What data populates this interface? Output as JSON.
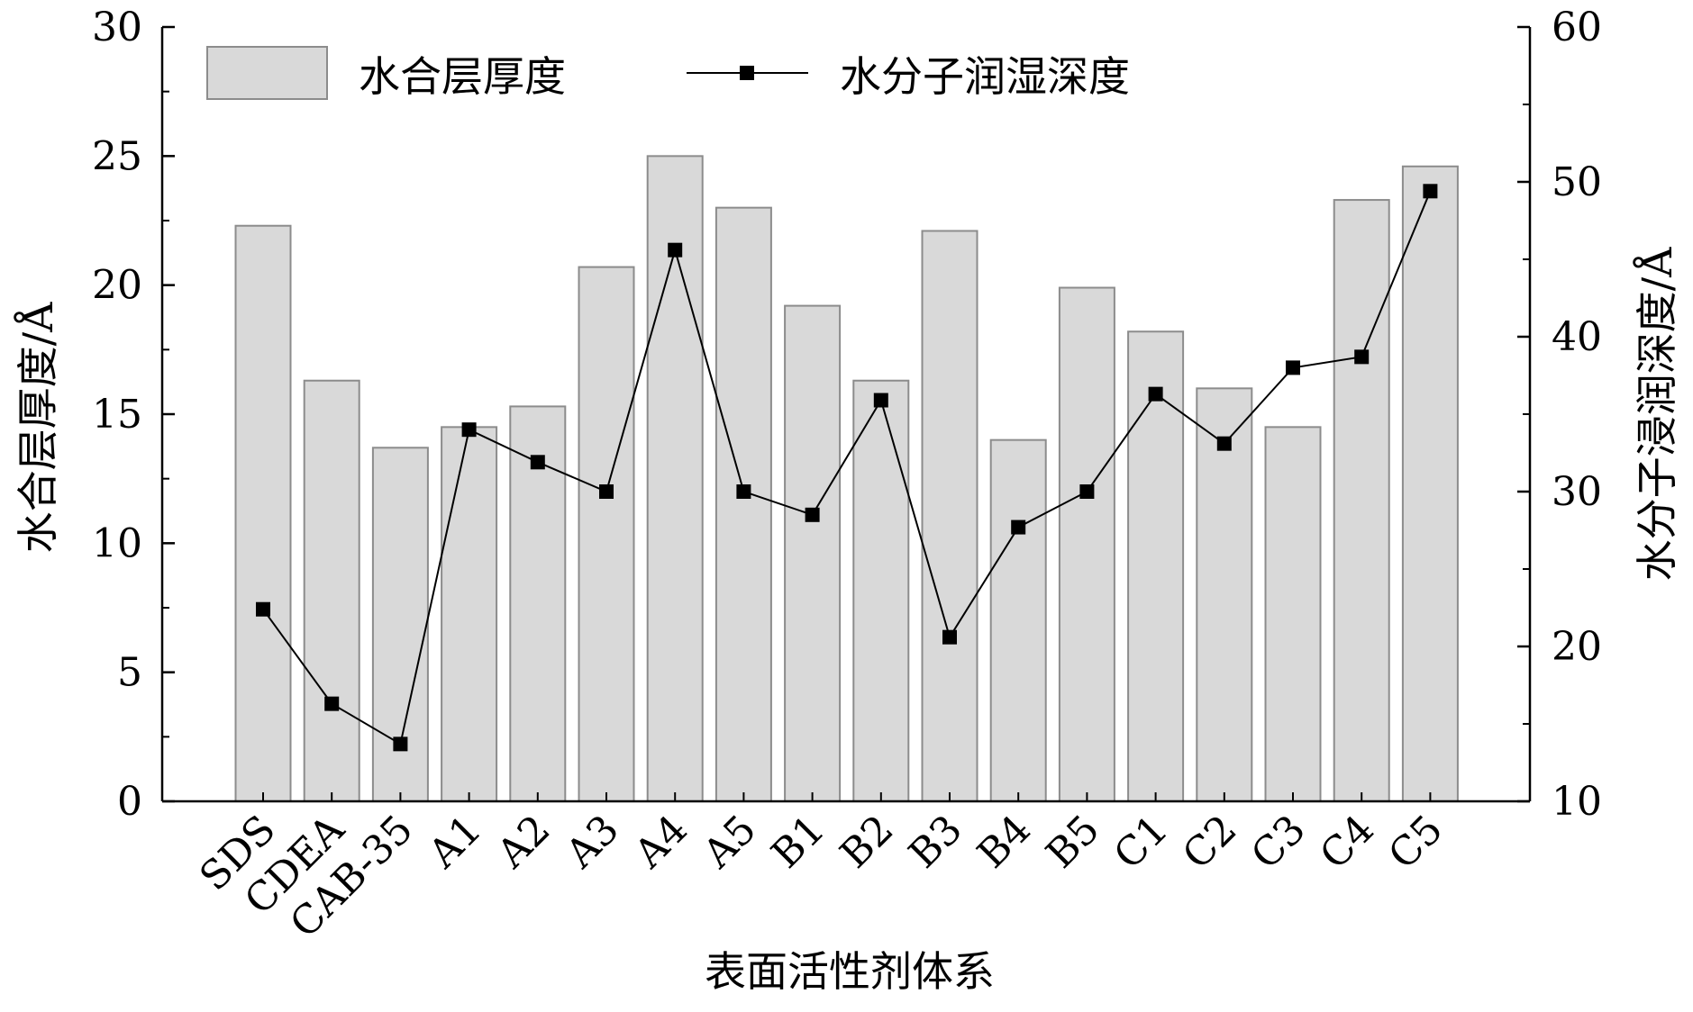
{
  "chart_data": {
    "type": "bar",
    "categories": [
      "SDS",
      "CDEA",
      "CAB-35",
      "A1",
      "A2",
      "A3",
      "A4",
      "A5",
      "B1",
      "B2",
      "B3",
      "B4",
      "B5",
      "C1",
      "C2",
      "C3",
      "C4",
      "C5"
    ],
    "series": [
      {
        "name": "水合层厚度",
        "type": "bar",
        "axis": "left",
        "color": "#d9d9d9",
        "values": [
          22.3,
          16.3,
          13.7,
          14.5,
          15.3,
          20.7,
          25.0,
          23.0,
          19.2,
          16.3,
          22.1,
          14.0,
          19.9,
          18.2,
          16.0,
          14.5,
          23.3,
          24.6
        ]
      },
      {
        "name": "水分子润湿深度",
        "type": "line",
        "axis": "right",
        "color": "#000000",
        "values": [
          22.4,
          16.3,
          13.7,
          34.0,
          31.9,
          30.0,
          45.6,
          30.0,
          28.5,
          35.9,
          20.6,
          27.7,
          30.0,
          36.3,
          33.1,
          38.0,
          38.7,
          49.4
        ]
      }
    ],
    "xlabel": "表面活性剂体系",
    "ylabel": "水合层厚度/Å",
    "y2label": "水分子浸润深度/Å",
    "ylim": [
      0,
      30
    ],
    "y2lim": [
      10,
      60
    ],
    "yticks": [
      "0",
      "5",
      "10",
      "15",
      "20",
      "25",
      "30"
    ],
    "y2ticks": [
      "10",
      "20",
      "30",
      "40",
      "50",
      "60"
    ],
    "legend_position": "top-left",
    "grid": false
  }
}
